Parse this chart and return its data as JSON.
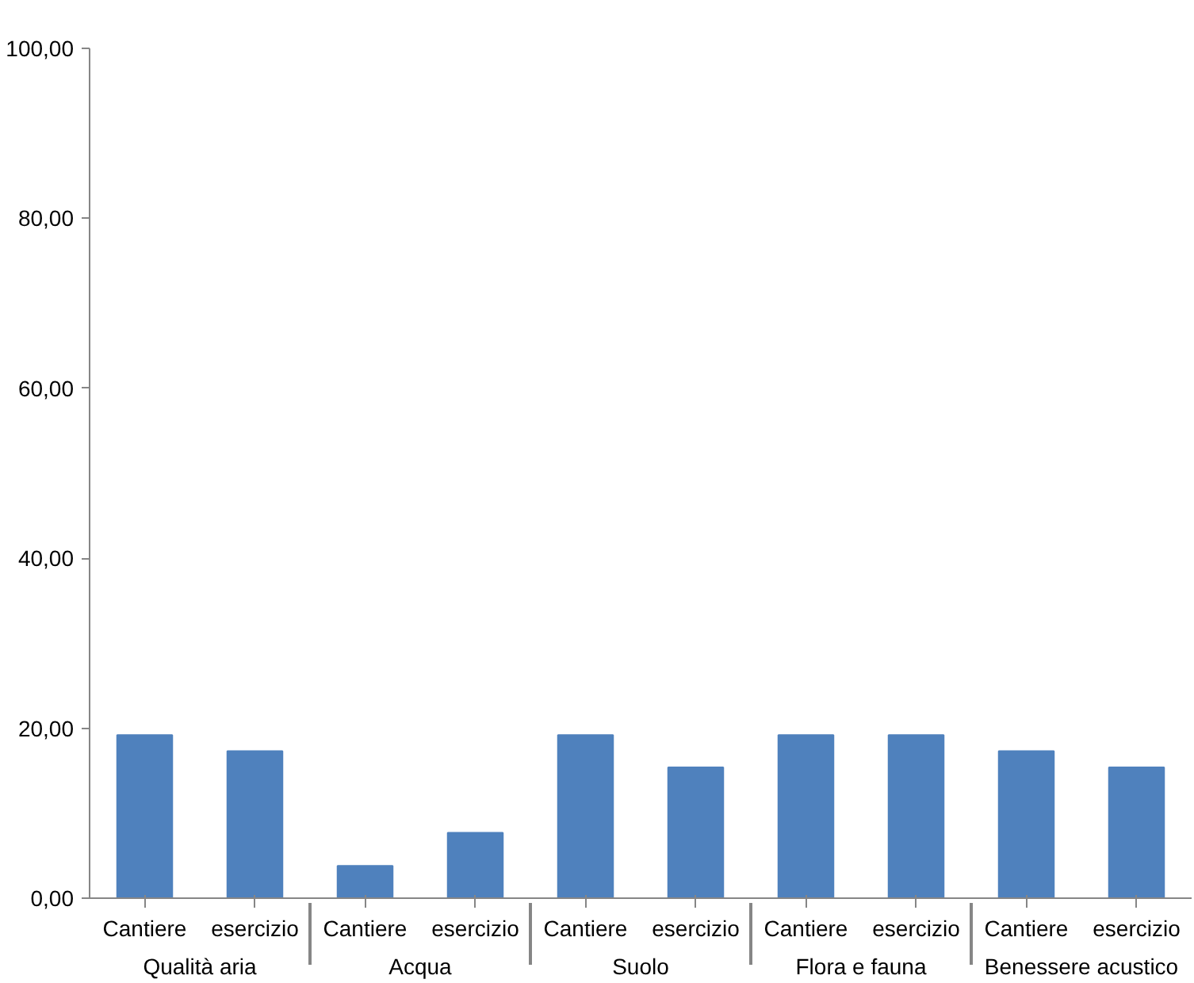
{
  "chart_data": {
    "type": "bar",
    "categories": [
      "Cantiere",
      "esercizio",
      "Cantiere",
      "esercizio",
      "Cantiere",
      "esercizio",
      "Cantiere",
      "esercizio",
      "Cantiere",
      "esercizio"
    ],
    "annotations": [
      "Qualità aria",
      "Acqua",
      "Suolo",
      "Flora e fauna",
      "Benessere acustico"
    ],
    "values": [
      19.2,
      17.3,
      3.8,
      7.7,
      19.2,
      15.4,
      19.2,
      19.2,
      17.3,
      15.4
    ],
    "color": "#4f81bd",
    "ylim": [
      0,
      100
    ],
    "yticks": [
      {
        "value": 0,
        "label": "0,00"
      },
      {
        "value": 20,
        "label": "20,00"
      },
      {
        "value": 40,
        "label": "40,00"
      },
      {
        "value": 60,
        "label": "60,00"
      },
      {
        "value": 80,
        "label": "80,00"
      },
      {
        "value": 100,
        "label": "100,00"
      }
    ],
    "grid": false
  }
}
